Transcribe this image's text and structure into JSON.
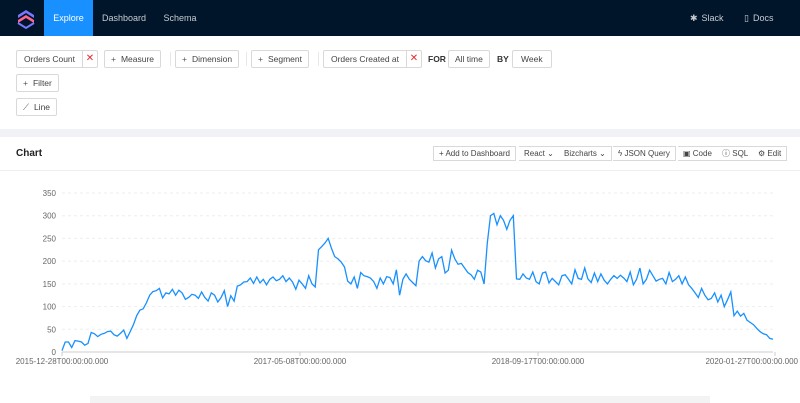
{
  "nav": {
    "items": [
      "Explore",
      "Dashboard",
      "Schema"
    ],
    "right": [
      {
        "label": "Slack",
        "icon": "slack-icon"
      },
      {
        "label": "Docs",
        "icon": "docs-icon"
      }
    ],
    "accent": "#1890ff",
    "bg": "#001529"
  },
  "builder": {
    "measure_selected": "Orders Count",
    "measure_add": "Measure",
    "dimension_add": "Dimension",
    "segment_add": "Segment",
    "time_dimension": "Orders Created at",
    "for_label": "FOR",
    "date_range": "All time",
    "by_label": "BY",
    "granularity": "Week",
    "filter_add": "Filter",
    "chart_type": "Line"
  },
  "card": {
    "title": "Chart",
    "toolbar": {
      "add_to_dashboard": "Add to Dashboard",
      "framework": "React",
      "library": "Bizcharts",
      "json_query": "JSON Query",
      "code": "Code",
      "sql": "SQL",
      "edit": "Edit"
    }
  },
  "chart_data": {
    "type": "line",
    "x_ticks": [
      "2015-12-28T00:00:00.000",
      "2017-05-08T00:00:00.000",
      "2018-09-17T00:00:00.000",
      "2020-01-27T00:00:00.000"
    ],
    "ylim": [
      0,
      350
    ],
    "yticks": [
      0,
      50,
      100,
      150,
      200,
      250,
      300,
      350
    ],
    "grid": true,
    "color": "#1890ff",
    "values": [
      3,
      22,
      22,
      10,
      25,
      24,
      22,
      15,
      19,
      43,
      40,
      34,
      39,
      41,
      45,
      46,
      38,
      35,
      41,
      48,
      30,
      45,
      60,
      80,
      92,
      95,
      108,
      125,
      133,
      135,
      140,
      119,
      130,
      128,
      138,
      125,
      136,
      130,
      116,
      120,
      127,
      125,
      118,
      132,
      120,
      112,
      130,
      125,
      110,
      120,
      135,
      100,
      124,
      112,
      145,
      148,
      154,
      155,
      163,
      151,
      165,
      152,
      160,
      148,
      160,
      165,
      157,
      160,
      168,
      155,
      163,
      154,
      138,
      158,
      150,
      140,
      168,
      150,
      143,
      225,
      232,
      240,
      250,
      228,
      210,
      205,
      198,
      187,
      156,
      150,
      165,
      140,
      175,
      168,
      166,
      163,
      155,
      140,
      163,
      150,
      166,
      164,
      150,
      181,
      125,
      160,
      172,
      160,
      153,
      146,
      200,
      210,
      201,
      198,
      218,
      185,
      205,
      210,
      174,
      180,
      224,
      205,
      193,
      195,
      185,
      175,
      170,
      160,
      180,
      176,
      150,
      240,
      300,
      305,
      280,
      300,
      290,
      270,
      290,
      300,
      161,
      160,
      172,
      163,
      160,
      176,
      155,
      150,
      174,
      176,
      152,
      162,
      155,
      148,
      168,
      170,
      160,
      150,
      181,
      162,
      160,
      185,
      161,
      153,
      174,
      155,
      172,
      158,
      150,
      160,
      168,
      162,
      169,
      163,
      155,
      176,
      148,
      160,
      185,
      150,
      160,
      180,
      168,
      156,
      160,
      162,
      150,
      175,
      155,
      160,
      168,
      150,
      165,
      148,
      140,
      130,
      120,
      140,
      125,
      115,
      118,
      130,
      110,
      125,
      100,
      115,
      132,
      80,
      90,
      79,
      85,
      70,
      65,
      60,
      52,
      45,
      40,
      38,
      30,
      28
    ]
  }
}
